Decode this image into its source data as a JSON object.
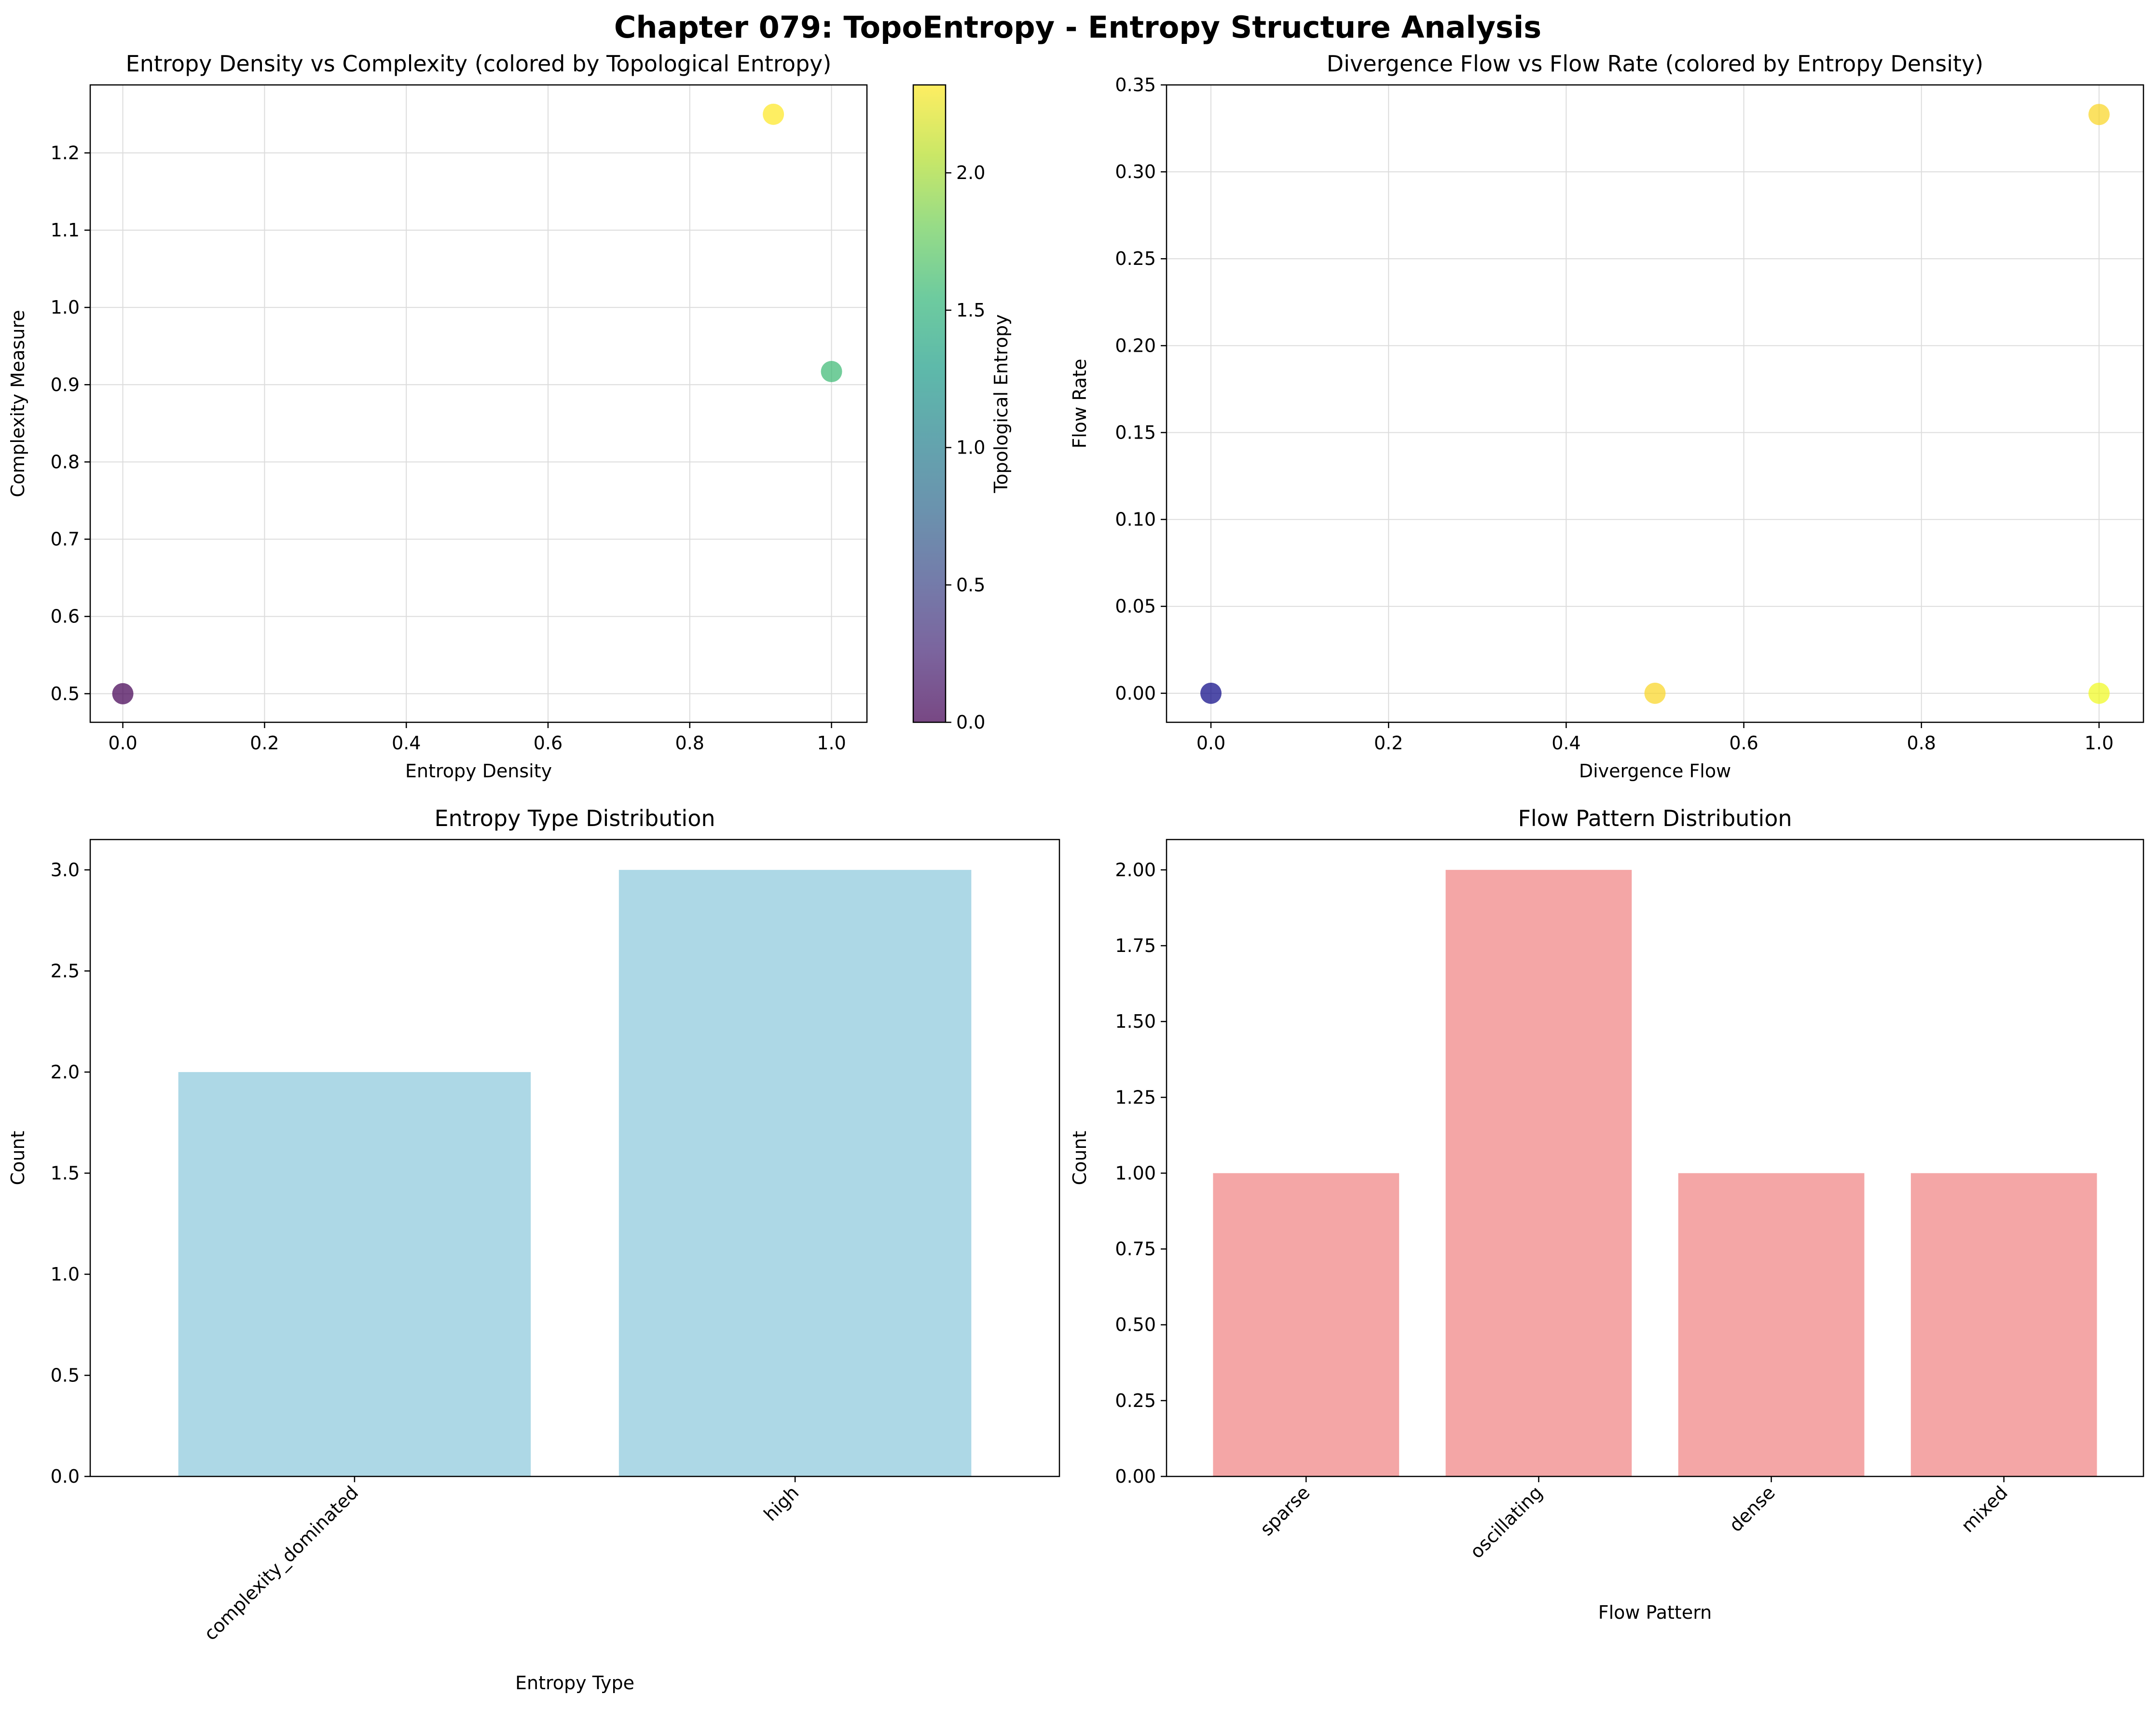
{
  "figure": {
    "title": "Chapter 079: TopoEntropy - Entropy Structure Analysis"
  },
  "colors": {
    "grid": "#dcdcdc",
    "bar_entropy": "#add8e6",
    "bar_flow": "#f4a6a6",
    "viridis": [
      "#440154",
      "#482878",
      "#3e4989",
      "#31688e",
      "#26828e",
      "#1f9e89",
      "#35b779",
      "#6ece58",
      "#b5de2b",
      "#fde725"
    ],
    "plasma": [
      "#0d0887",
      "#46039f",
      "#7201a8",
      "#9c179e",
      "#bd3786",
      "#d8576b",
      "#ed7953",
      "#fb9f3a",
      "#fdca26",
      "#f0f921"
    ]
  },
  "chart_data": [
    {
      "id": "entropy_vs_complexity",
      "type": "scatter",
      "title": "Entropy Density vs Complexity (colored by Topological Entropy)",
      "xlabel": "Entropy Density",
      "ylabel": "Complexity Measure",
      "xlim": [
        -0.046,
        1.05
      ],
      "ylim": [
        0.463,
        1.288
      ],
      "xticks": [
        0.0,
        0.2,
        0.4,
        0.6,
        0.8,
        1.0
      ],
      "xtick_labels": [
        "0.0",
        "0.2",
        "0.4",
        "0.6",
        "0.8",
        "1.0"
      ],
      "yticks": [
        0.5,
        0.6,
        0.7,
        0.8,
        0.9,
        1.0,
        1.1,
        1.2
      ],
      "ytick_labels": [
        "0.5",
        "0.6",
        "0.7",
        "0.8",
        "0.9",
        "1.0",
        "1.1",
        "1.2"
      ],
      "grid": true,
      "colormap": "viridis",
      "points": [
        {
          "x": 0.0,
          "y": 0.5,
          "c": 0.0
        },
        {
          "x": 1.0,
          "y": 0.917,
          "c": 1.585
        },
        {
          "x": 0.918,
          "y": 1.25,
          "c": 2.32
        }
      ],
      "colorbar": {
        "label": "Topological Entropy",
        "range": [
          0.0,
          2.32
        ],
        "ticks": [
          0.0,
          0.5,
          1.0,
          1.5,
          2.0
        ],
        "tick_labels": [
          "0.0",
          "0.5",
          "1.0",
          "1.5",
          "2.0"
        ]
      }
    },
    {
      "id": "divergence_vs_flow",
      "type": "scatter",
      "title": "Divergence Flow vs Flow Rate (colored by Entropy Density)",
      "xlabel": "Divergence Flow",
      "ylabel": "Flow Rate",
      "xlim": [
        -0.05,
        1.05
      ],
      "ylim": [
        -0.0167,
        0.35
      ],
      "xticks": [
        0.0,
        0.2,
        0.4,
        0.6,
        0.8,
        1.0
      ],
      "xtick_labels": [
        "0.0",
        "0.2",
        "0.4",
        "0.6",
        "0.8",
        "1.0"
      ],
      "yticks": [
        0.0,
        0.05,
        0.1,
        0.15,
        0.2,
        0.25,
        0.3,
        0.35
      ],
      "ytick_labels": [
        "0.00",
        "0.05",
        "0.10",
        "0.15",
        "0.20",
        "0.25",
        "0.30",
        "0.35"
      ],
      "grid": true,
      "colormap": "plasma",
      "points": [
        {
          "x": 0.0,
          "y": 0.0,
          "c": 0.0
        },
        {
          "x": 0.5,
          "y": 0.0,
          "c": 0.918
        },
        {
          "x": 1.0,
          "y": 0.333,
          "c": 0.918
        },
        {
          "x": 1.0,
          "y": 0.0,
          "c": 1.0
        }
      ]
    },
    {
      "id": "entropy_type_distribution",
      "type": "bar",
      "title": "Entropy Type Distribution",
      "xlabel": "Entropy Type",
      "ylabel": "Count",
      "categories": [
        "complexity_dominated",
        "high"
      ],
      "values": [
        2,
        3
      ],
      "ylim": [
        0,
        3.15
      ],
      "yticks": [
        0.0,
        0.5,
        1.0,
        1.5,
        2.0,
        2.5,
        3.0
      ],
      "ytick_labels": [
        "0.0",
        "0.5",
        "1.0",
        "1.5",
        "2.0",
        "2.5",
        "3.0"
      ],
      "xtick_rotation": 45
    },
    {
      "id": "flow_pattern_distribution",
      "type": "bar",
      "title": "Flow Pattern Distribution",
      "xlabel": "Flow Pattern",
      "ylabel": "Count",
      "categories": [
        "sparse",
        "oscillating",
        "dense",
        "mixed"
      ],
      "values": [
        1,
        2,
        1,
        1
      ],
      "ylim": [
        0,
        2.1
      ],
      "yticks": [
        0.0,
        0.25,
        0.5,
        0.75,
        1.0,
        1.25,
        1.5,
        1.75,
        2.0
      ],
      "ytick_labels": [
        "0.00",
        "0.25",
        "0.50",
        "0.75",
        "1.00",
        "1.25",
        "1.50",
        "1.75",
        "2.00"
      ],
      "xtick_rotation": 45
    }
  ]
}
